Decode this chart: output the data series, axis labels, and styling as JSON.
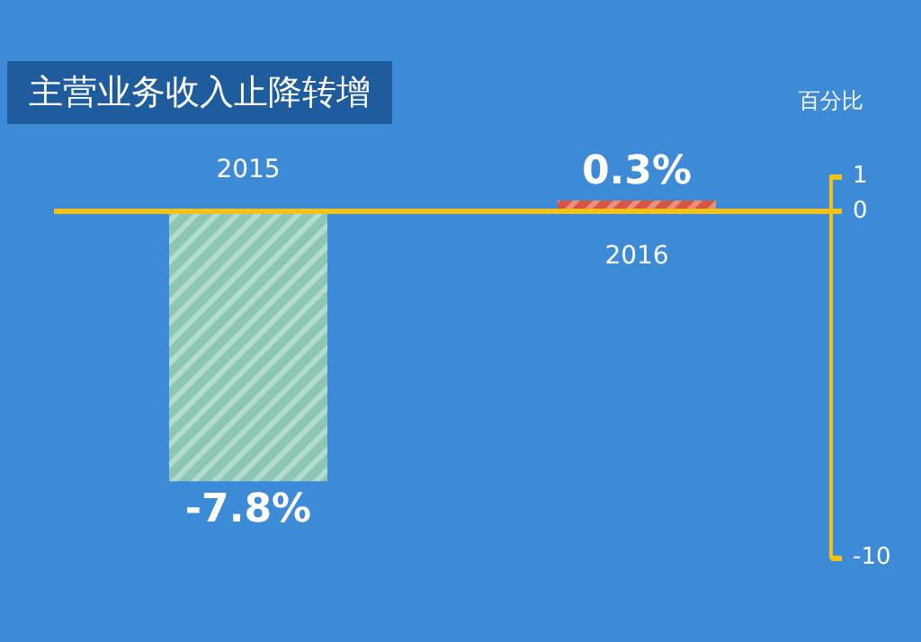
{
  "chart_data": {
    "type": "bar",
    "title": "主营业务收入止降转增",
    "ylabel": "百分比",
    "categories": [
      "2015",
      "2016"
    ],
    "values": [
      -7.8,
      0.3
    ],
    "colors": [
      "#8cc7b5",
      "#d9553f"
    ],
    "value_labels": [
      "-7.8%",
      "0.3%"
    ],
    "ylim": [
      -10,
      1
    ],
    "yticks": [
      -10,
      0,
      1
    ],
    "grid": false,
    "ref_lines": [
      {
        "axis": "y",
        "value": 0,
        "color": "#f2c21a"
      }
    ]
  }
}
